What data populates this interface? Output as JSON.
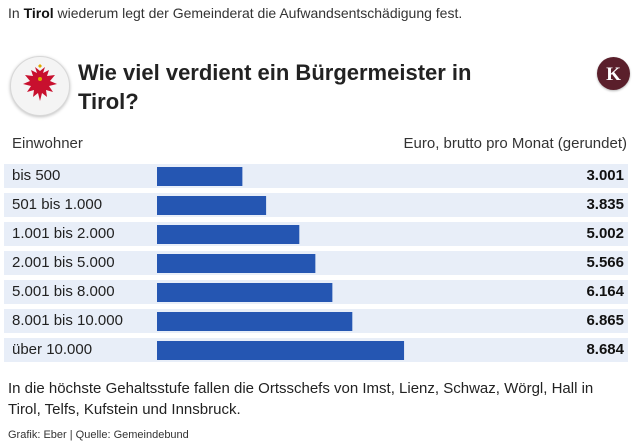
{
  "intro": {
    "prefix": "In ",
    "bold": "Tirol",
    "suffix": " wiederum legt der Gemeinderat die Aufwandsentschädigung fest."
  },
  "header": {
    "title": "Wie viel verdient ein Bürgermeister in Tirol?",
    "seal_icon": "tyrol-eagle-coat-of-arms-icon",
    "brand_icon": "newspaper-k-logo-icon",
    "brand_letter": "K"
  },
  "chart_data": {
    "type": "bar",
    "orientation": "horizontal",
    "xlabel": "Einwohner",
    "ylabel": "Euro, brutto pro Monat (gerundet)",
    "categories": [
      "bis 500",
      "501 bis 1.000",
      "1.001 bis 2.000",
      "2.001 bis 5.000",
      "5.001 bis 8.000",
      "8.001 bis 10.000",
      "über 10.000"
    ],
    "values": [
      3001,
      3835,
      5002,
      5566,
      6164,
      6865,
      8684
    ],
    "value_labels": [
      "3.001",
      "3.835",
      "5.002",
      "5.566",
      "6.164",
      "6.865",
      "8.684"
    ],
    "bar_color": "#2556b2",
    "row_color": "#e8eef8"
  },
  "footnote": "In die höchste Gehaltsstufe fallen die Ortsschefs von Imst, Lienz, Schwaz, Wörgl, Hall in Tirol, Telfs, Kufstein und Innsbruck.",
  "credit": "Grafik: Eber | Quelle: Gemeindebund"
}
